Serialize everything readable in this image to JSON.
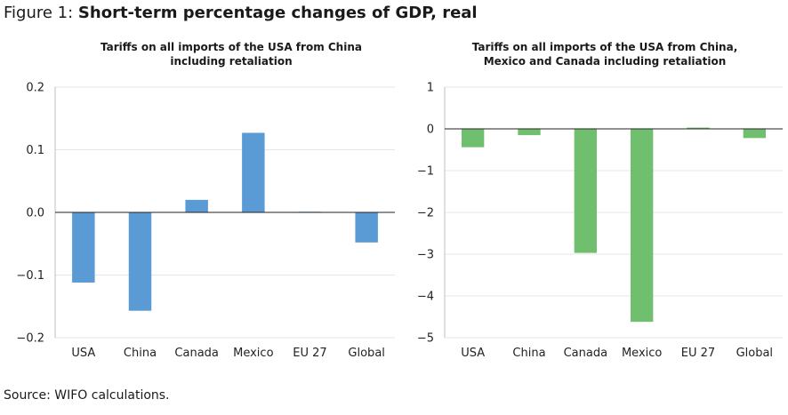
{
  "figure": {
    "prefix": "Figure 1: ",
    "title": "Short-term percentage changes of GDP, real"
  },
  "source": "Source: WIFO calculations.",
  "chart_data": [
    {
      "type": "bar",
      "title_lines": [
        "Tariffs on all imports of the USA from China",
        "including retaliation"
      ],
      "categories": [
        "USA",
        "China",
        "Canada",
        "Mexico",
        "EU 27",
        "Global"
      ],
      "values": [
        -0.112,
        -0.157,
        0.02,
        0.127,
        0.001,
        -0.048
      ],
      "ylim": [
        -0.2,
        0.2
      ],
      "yticks": [
        0.2,
        0.1,
        0.0,
        -0.1,
        -0.2
      ],
      "ytick_labels": [
        "0.2",
        "0.1",
        "0.0",
        "−0.1",
        "−0.2"
      ],
      "color": "#5B9BD5",
      "grid": true,
      "xlabel": "",
      "ylabel": ""
    },
    {
      "type": "bar",
      "title_lines": [
        "Tariffs on all imports of the USA from China,",
        "Mexico and Canada including retaliation"
      ],
      "categories": [
        "USA",
        "China",
        "Canada",
        "Mexico",
        "EU 27",
        "Global"
      ],
      "values": [
        -0.44,
        -0.15,
        -2.97,
        -4.62,
        0.03,
        -0.22
      ],
      "ylim": [
        -5,
        1
      ],
      "yticks": [
        1,
        0,
        -1,
        -2,
        -3,
        -4,
        -5
      ],
      "ytick_labels": [
        "1",
        "0",
        "−1",
        "−2",
        "−3",
        "−4",
        "−5"
      ],
      "color": "#70BF6E",
      "grid": true,
      "xlabel": "",
      "ylabel": ""
    }
  ]
}
